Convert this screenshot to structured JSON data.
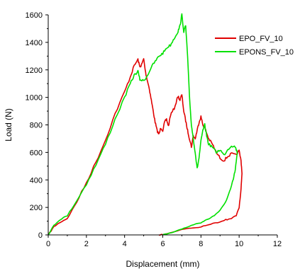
{
  "chart_data": {
    "type": "line",
    "title": "",
    "xlabel": "Displacement (mm)",
    "ylabel": "Load (N)",
    "xlim": [
      0,
      12
    ],
    "ylim": [
      0,
      1600
    ],
    "xticks": [
      0,
      2,
      4,
      6,
      8,
      10,
      12
    ],
    "yticks": [
      0,
      200,
      400,
      600,
      800,
      1000,
      1200,
      1400,
      1600
    ],
    "grid": false,
    "legend_position": "top-right",
    "series": [
      {
        "name": "EPO_FV_10",
        "color": "#e00000",
        "points": [
          [
            0,
            0
          ],
          [
            0.3,
            60
          ],
          [
            0.6,
            90
          ],
          [
            1.0,
            120
          ],
          [
            1.5,
            240
          ],
          [
            2.0,
            380
          ],
          [
            2.5,
            530
          ],
          [
            3.0,
            690
          ],
          [
            3.5,
            880
          ],
          [
            4.0,
            1040
          ],
          [
            4.3,
            1150
          ],
          [
            4.5,
            1230
          ],
          [
            4.7,
            1275
          ],
          [
            4.8,
            1220
          ],
          [
            4.9,
            1240
          ],
          [
            5.0,
            1280
          ],
          [
            5.1,
            1180
          ],
          [
            5.2,
            1120
          ],
          [
            5.3,
            1060
          ],
          [
            5.4,
            980
          ],
          [
            5.5,
            900
          ],
          [
            5.6,
            820
          ],
          [
            5.7,
            760
          ],
          [
            5.8,
            730
          ],
          [
            5.9,
            780
          ],
          [
            6.0,
            760
          ],
          [
            6.1,
            820
          ],
          [
            6.2,
            840
          ],
          [
            6.3,
            790
          ],
          [
            6.4,
            870
          ],
          [
            6.6,
            920
          ],
          [
            6.8,
            1010
          ],
          [
            6.9,
            980
          ],
          [
            7.0,
            1020
          ],
          [
            7.1,
            900
          ],
          [
            7.2,
            830
          ],
          [
            7.3,
            760
          ],
          [
            7.4,
            700
          ],
          [
            7.5,
            640
          ],
          [
            7.6,
            720
          ],
          [
            7.7,
            700
          ],
          [
            7.8,
            760
          ],
          [
            7.9,
            820
          ],
          [
            8.0,
            860
          ],
          [
            8.1,
            800
          ],
          [
            8.2,
            780
          ],
          [
            8.3,
            740
          ],
          [
            8.4,
            700
          ],
          [
            8.6,
            660
          ],
          [
            8.8,
            600
          ],
          [
            9.0,
            560
          ],
          [
            9.2,
            540
          ],
          [
            9.4,
            570
          ],
          [
            9.6,
            590
          ],
          [
            9.8,
            580
          ],
          [
            10.0,
            610
          ],
          [
            10.1,
            540
          ],
          [
            10.15,
            450
          ],
          [
            10.1,
            330
          ],
          [
            10.0,
            200
          ],
          [
            9.85,
            140
          ],
          [
            9.6,
            120
          ],
          [
            9.3,
            110
          ],
          [
            9.0,
            90
          ],
          [
            8.5,
            80
          ],
          [
            8.0,
            60
          ],
          [
            7.5,
            50
          ],
          [
            7.0,
            40
          ],
          [
            6.5,
            20
          ],
          [
            6.0,
            5
          ],
          [
            5.8,
            0
          ]
        ]
      },
      {
        "name": "EPONS_FV_10",
        "color": "#00e000",
        "points": [
          [
            0,
            0
          ],
          [
            0.3,
            70
          ],
          [
            0.6,
            110
          ],
          [
            1.0,
            140
          ],
          [
            1.5,
            250
          ],
          [
            2.0,
            370
          ],
          [
            2.5,
            510
          ],
          [
            3.0,
            660
          ],
          [
            3.5,
            840
          ],
          [
            4.0,
            1000
          ],
          [
            4.3,
            1100
          ],
          [
            4.5,
            1160
          ],
          [
            4.7,
            1190
          ],
          [
            4.8,
            1130
          ],
          [
            5.0,
            1120
          ],
          [
            5.2,
            1160
          ],
          [
            5.4,
            1220
          ],
          [
            5.6,
            1260
          ],
          [
            5.8,
            1300
          ],
          [
            6.0,
            1320
          ],
          [
            6.2,
            1360
          ],
          [
            6.4,
            1380
          ],
          [
            6.6,
            1430
          ],
          [
            6.8,
            1480
          ],
          [
            6.9,
            1520
          ],
          [
            7.0,
            1600
          ],
          [
            7.1,
            1480
          ],
          [
            7.2,
            1520
          ],
          [
            7.3,
            1300
          ],
          [
            7.4,
            1000
          ],
          [
            7.5,
            800
          ],
          [
            7.6,
            700
          ],
          [
            7.7,
            600
          ],
          [
            7.8,
            480
          ],
          [
            7.9,
            560
          ],
          [
            8.0,
            680
          ],
          [
            8.1,
            760
          ],
          [
            8.2,
            800
          ],
          [
            8.3,
            720
          ],
          [
            8.4,
            660
          ],
          [
            8.6,
            640
          ],
          [
            8.8,
            600
          ],
          [
            9.0,
            620
          ],
          [
            9.2,
            580
          ],
          [
            9.4,
            620
          ],
          [
            9.6,
            650
          ],
          [
            9.8,
            640
          ],
          [
            9.9,
            600
          ],
          [
            9.8,
            480
          ],
          [
            9.7,
            400
          ],
          [
            9.5,
            320
          ],
          [
            9.3,
            240
          ],
          [
            9.0,
            180
          ],
          [
            8.7,
            140
          ],
          [
            8.3,
            110
          ],
          [
            8.0,
            90
          ],
          [
            7.5,
            70
          ],
          [
            7.0,
            40
          ],
          [
            6.5,
            20
          ],
          [
            6.2,
            5
          ],
          [
            6.0,
            0
          ]
        ]
      }
    ]
  }
}
